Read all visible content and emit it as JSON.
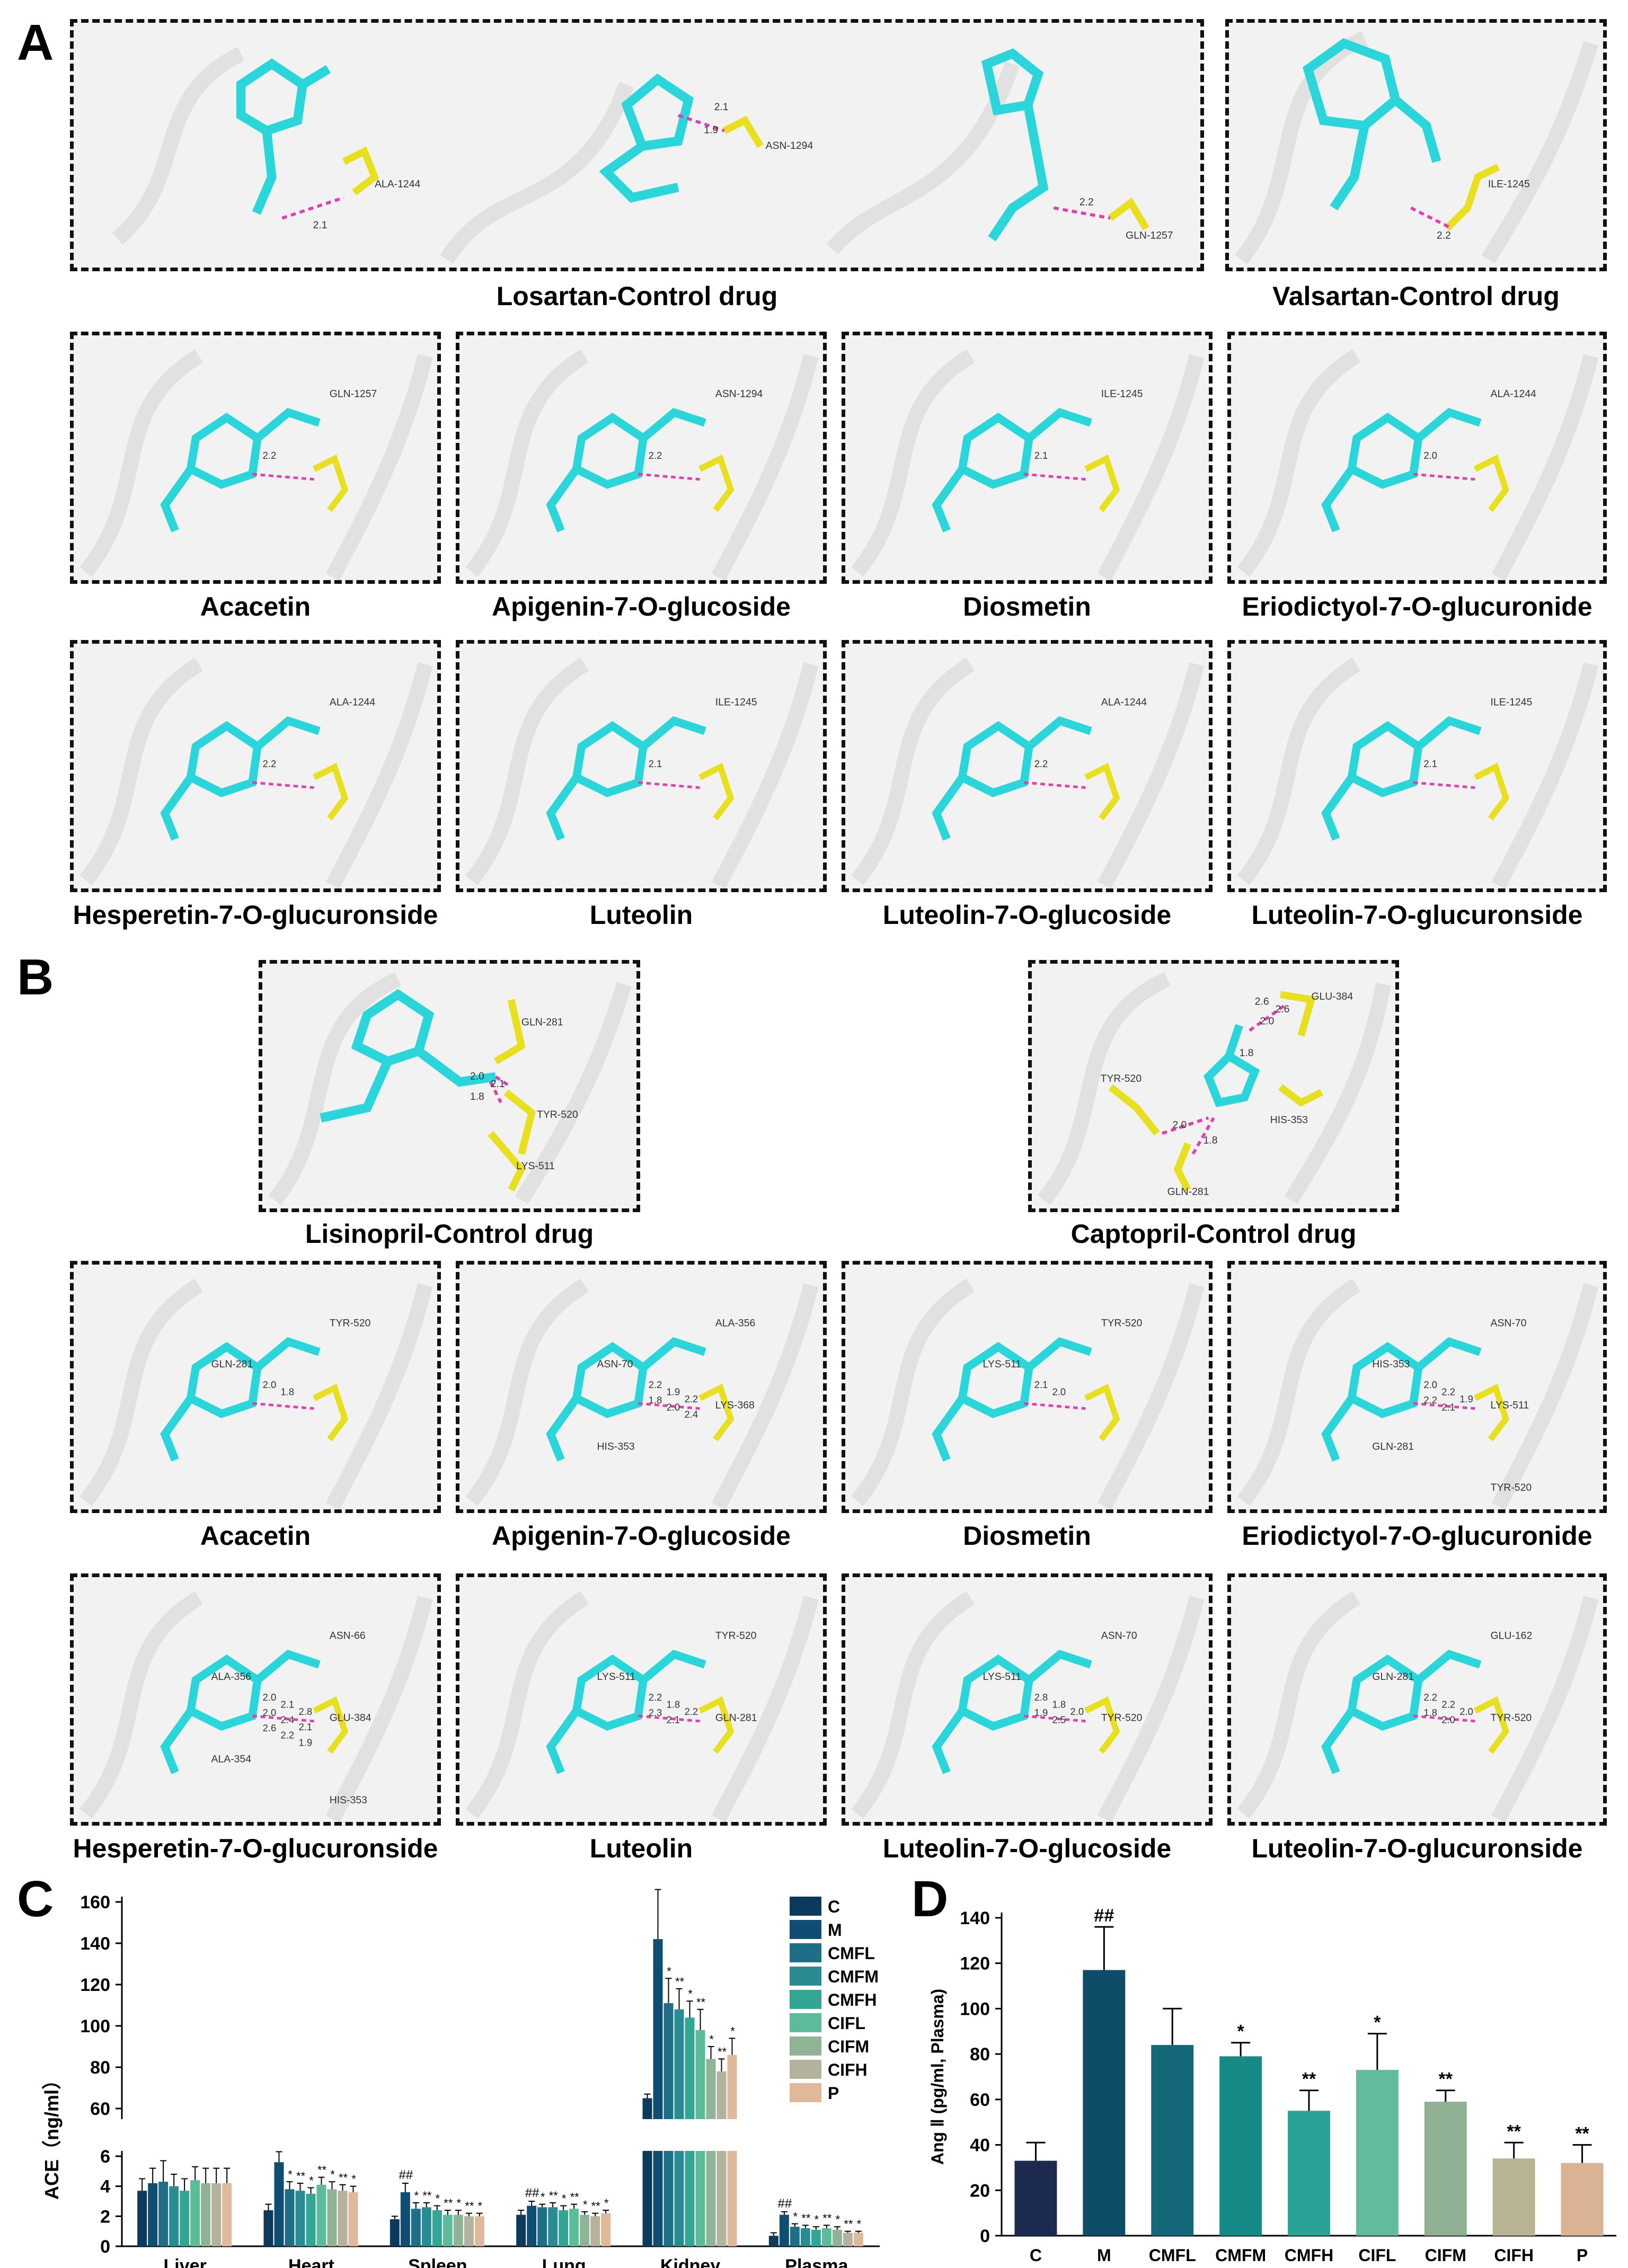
{
  "panel_letters": {
    "A": "A",
    "B": "B",
    "C": "C",
    "D": "D"
  },
  "panelA": {
    "row1": [
      {
        "residue": "ALA-1244",
        "distance": "2.1"
      },
      {
        "residue": "ASN-1294",
        "distance": "2.1",
        "distance2": "1.9"
      },
      {
        "residue": "GLN-1257",
        "distance": "2.2"
      },
      {
        "residue": "ILE-1245",
        "distance": "2.2"
      }
    ],
    "row1_labels": [
      "Losartan-Control drug",
      "Valsartan-Control drug"
    ],
    "row2": [
      {
        "label": "Acacetin",
        "residue": "GLN-1257",
        "distance": "2.2"
      },
      {
        "label": "Apigenin-7-O-glucoside",
        "residue": "ASN-1294",
        "distance": "2.2"
      },
      {
        "label": "Diosmetin",
        "residue": "ILE-1245",
        "distance": "2.1"
      },
      {
        "label": "Eriodictyol-7-O-glucuronide",
        "residue": "ALA-1244",
        "distance": "2.0"
      }
    ],
    "row3": [
      {
        "label": "Hesperetin-7-O-glucuronside",
        "residue": "ALA-1244",
        "distance": "2.2"
      },
      {
        "label": "Luteolin",
        "residue": "ILE-1245",
        "distance": "2.1"
      },
      {
        "label": "Luteolin-7-O-glucoside",
        "residue": "ALA-1244",
        "distance": "2.2"
      },
      {
        "label": "Luteolin-7-O-glucuronside",
        "residue": "ILE-1245",
        "distance": "2.1"
      }
    ]
  },
  "panelB": {
    "row1": [
      {
        "label": "Lisinopril-Control drug",
        "residues": [
          "GLN-281",
          "TYR-520",
          "LYS-511"
        ],
        "distances": [
          "2.0",
          "2.1",
          "1.8"
        ]
      },
      {
        "label": "Captopril-Control drug",
        "residues": [
          "GLU-384",
          "TYR-520",
          "HIS-353",
          "GLN-281"
        ],
        "distances": [
          "2.6",
          "2.6",
          "2.0",
          "1.8",
          "2.0",
          "1.8"
        ]
      }
    ],
    "row2": [
      {
        "label": "Acacetin",
        "residues": [
          "TYR-520",
          "GLN-281"
        ],
        "distances": [
          "2.0",
          "1.8"
        ]
      },
      {
        "label": "Apigenin-7-O-glucoside",
        "residues": [
          "ALA-356",
          "ASN-70",
          "LYS-368",
          "HIS-353"
        ],
        "distances": [
          "2.2",
          "1.9",
          "2.2",
          "1.8",
          "2.0",
          "2.4"
        ]
      },
      {
        "label": "Diosmetin",
        "residues": [
          "TYR-520",
          "LYS-511"
        ],
        "distances": [
          "2.1",
          "2.0"
        ]
      },
      {
        "label": "Eriodictyol-7-O-glucuronide",
        "residues": [
          "ASN-70",
          "HIS-353",
          "LYS-511",
          "GLN-281",
          "TYR-520"
        ],
        "distances": [
          "2.0",
          "2.2",
          "1.9",
          "2.2",
          "2.1"
        ]
      }
    ],
    "row3": [
      {
        "label": "Hesperetin-7-O-glucuronside",
        "residues": [
          "ASN-66",
          "ALA-356",
          "GLU-384",
          "ALA-354",
          "HIS-353"
        ],
        "distances": [
          "2.0",
          "2.1",
          "2.8",
          "2.0",
          "2.4",
          "2.1",
          "2.6",
          "2.2",
          "1.9"
        ]
      },
      {
        "label": "Luteolin",
        "residues": [
          "TYR-520",
          "LYS-511",
          "GLN-281"
        ],
        "distances": [
          "2.2",
          "1.8",
          "2.2",
          "2.3",
          "2.1"
        ]
      },
      {
        "label": "Luteolin-7-O-glucoside",
        "residues": [
          "ASN-70",
          "LYS-511",
          "TYR-520"
        ],
        "distances": [
          "2.8",
          "1.8",
          "2.0",
          "1.9",
          "2.5"
        ]
      },
      {
        "label": "Luteolin-7-O-glucuronside",
        "residues": [
          "GLU-162",
          "GLN-281",
          "TYR-520"
        ],
        "distances": [
          "2.2",
          "2.2",
          "2.0",
          "1.8",
          "2.0"
        ]
      }
    ]
  },
  "colors": {
    "C": "#0b3a5c",
    "M": "#0f4e72",
    "CMFL": "#1e6e86",
    "CMFM": "#2a8b92",
    "CMFH": "#33a594",
    "CIFL": "#5cbc9a",
    "CIFM": "#8fb394",
    "CIFH": "#b3b39d",
    "P": "#e0b89a",
    "D_colors": [
      "#1b2a4e",
      "#0e4c68",
      "#15687a",
      "#168a86",
      "#2aa397",
      "#62bc9b",
      "#8fb092",
      "#b8b393",
      "#d9b394"
    ],
    "sig_red": "#c0392b",
    "sig_orange": "#e07a2a",
    "sig_darkred": "#8b1f2e"
  },
  "chart_data": [
    {
      "type": "bar",
      "panel": "C",
      "ylabel": "ACE（ng/ml）",
      "categories": [
        "Liver",
        "Heart",
        "Spleen",
        "Lung",
        "Kidney",
        "Plasma"
      ],
      "legend": [
        "C",
        "M",
        "CMFL",
        "CMFM",
        "CMFH",
        "CIFL",
        "CIFM",
        "CIFH",
        "P"
      ],
      "legend_position": "top-right",
      "y_ticks_lower": [
        0,
        2,
        4,
        6
      ],
      "y_ticks_upper": [
        60,
        80,
        100,
        120,
        140,
        160
      ],
      "series": [
        {
          "name": "C",
          "values": [
            3.7,
            2.4,
            1.8,
            2.1,
            65,
            0.7
          ],
          "errors": [
            0.8,
            0.4,
            0.2,
            0.3,
            2,
            0.2
          ]
        },
        {
          "name": "M",
          "values": [
            4.2,
            5.6,
            3.6,
            2.7,
            142,
            2.1
          ],
          "errors": [
            1.0,
            0.7,
            0.6,
            0.3,
            24,
            0.2
          ]
        },
        {
          "name": "CMFL",
          "values": [
            4.3,
            3.8,
            2.5,
            2.6,
            111,
            1.3
          ],
          "errors": [
            1.4,
            0.5,
            0.4,
            0.2,
            12,
            0.2
          ]
        },
        {
          "name": "CMFM",
          "values": [
            4.0,
            3.7,
            2.6,
            2.6,
            108,
            1.2
          ],
          "errors": [
            0.8,
            0.5,
            0.3,
            0.3,
            10,
            0.2
          ]
        },
        {
          "name": "CMFH",
          "values": [
            3.7,
            3.5,
            2.4,
            2.4,
            104,
            1.1
          ],
          "errors": [
            0.8,
            0.4,
            0.3,
            0.3,
            8,
            0.2
          ]
        },
        {
          "name": "CIFL",
          "values": [
            4.4,
            4.1,
            2.1,
            2.5,
            98,
            1.2
          ],
          "errors": [
            0.9,
            0.5,
            0.3,
            0.3,
            10,
            0.2
          ]
        },
        {
          "name": "CIFM",
          "values": [
            4.2,
            3.8,
            2.1,
            2.1,
            84,
            1.1
          ],
          "errors": [
            1.0,
            0.5,
            0.3,
            0.2,
            6,
            0.2
          ]
        },
        {
          "name": "CIFH",
          "values": [
            4.2,
            3.7,
            2.0,
            2.0,
            78,
            0.9
          ],
          "errors": [
            1.0,
            0.4,
            0.2,
            0.2,
            6,
            0.1
          ]
        },
        {
          "name": "P",
          "values": [
            4.2,
            3.6,
            2.0,
            2.2,
            86,
            0.9
          ],
          "errors": [
            1.0,
            0.4,
            0.2,
            0.2,
            8,
            0.1
          ]
        }
      ],
      "annotations": {
        "hash": "##",
        "star": "*",
        "double_star": "**"
      }
    },
    {
      "type": "bar",
      "panel": "D",
      "ylabel": "Ang Ⅱ (pg/ml, Plasma)",
      "categories": [
        "C",
        "M",
        "CMFL",
        "CMFM",
        "CMFH",
        "CIFL",
        "CIFM",
        "CIFH",
        "P"
      ],
      "values": [
        33,
        117,
        84,
        79,
        55,
        73,
        59,
        34,
        32
      ],
      "errors": [
        8,
        19,
        16,
        6,
        9,
        16,
        5,
        7,
        8
      ],
      "ylim": [
        0,
        140
      ],
      "y_ticks": [
        0,
        20,
        40,
        60,
        80,
        100,
        120,
        140
      ],
      "marks": [
        "",
        "##",
        "",
        "*",
        "**",
        "*",
        "**",
        "**",
        "**"
      ]
    }
  ]
}
